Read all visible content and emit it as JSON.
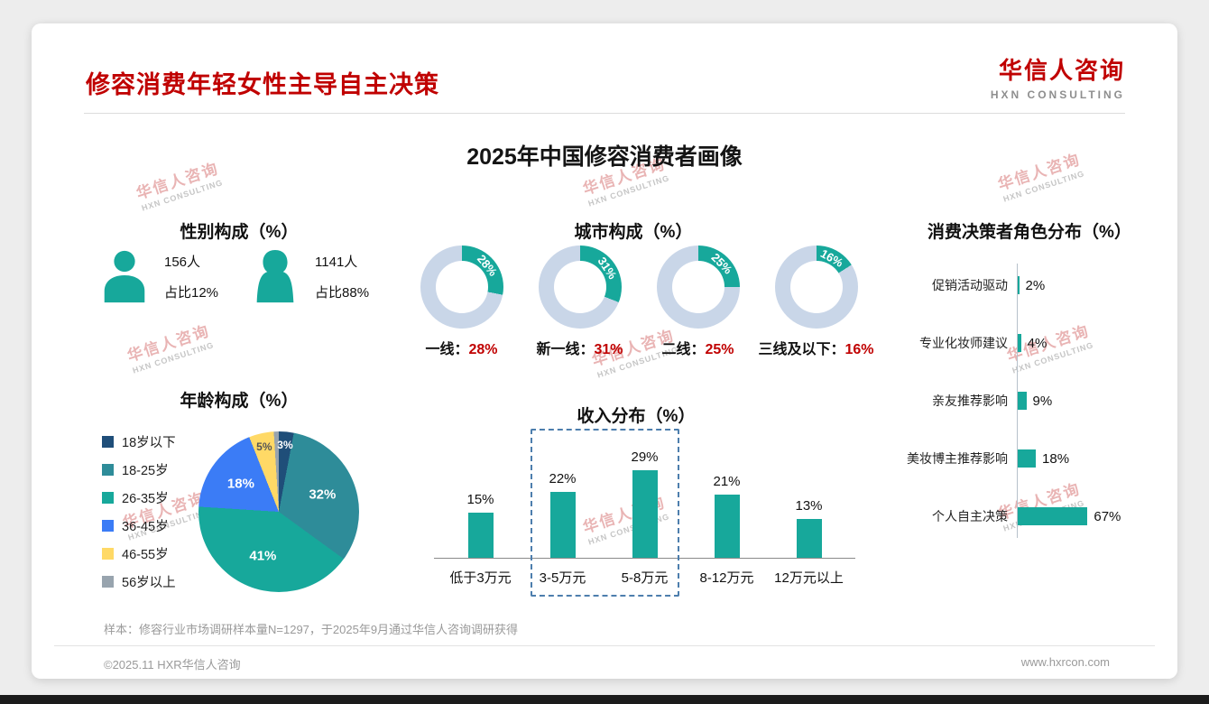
{
  "page": {
    "title": "修容消费年轻女性主导自主决策",
    "logo": {
      "zh": "华信人咨询",
      "en": "HXN CONSULTING"
    },
    "main_title": "2025年中国修容消费者画像",
    "watermark": {
      "zh": "华信人咨询",
      "en": "HXN CONSULTING"
    },
    "note": "样本：修容行业市场调研样本量N=1297，于2025年9月通过华信人咨询调研获得",
    "footer_left": "©2025.11 HXR华信人咨询",
    "footer_right": "www.hxrcon.com"
  },
  "colors": {
    "accent_red": "#C00000",
    "teal": "#17A89B",
    "donut_rest": "#C9D6E8",
    "highlight_border": "#4D7EAD"
  },
  "chart_data": [
    {
      "id": "gender",
      "type": "pictogram",
      "title": "性别构成（%）",
      "items": [
        {
          "label": "男",
          "count": "156人",
          "share": "占比12%"
        },
        {
          "label": "女",
          "count": "1141人",
          "share": "占比88%"
        }
      ]
    },
    {
      "id": "city",
      "type": "pie",
      "title": "城市构成（%）",
      "items": [
        {
          "label": "一线",
          "value": 28
        },
        {
          "label": "新一线",
          "value": 31
        },
        {
          "label": "二线",
          "value": 25
        },
        {
          "label": "三线及以下",
          "value": 16
        }
      ],
      "note": "four donut charts, teal segment = value, remainder light blue-gray"
    },
    {
      "id": "decision",
      "type": "bar",
      "orientation": "horizontal",
      "title": "消费决策者角色分布（%）",
      "categories": [
        "促销活动驱动",
        "专业化妆师建议",
        "亲友推荐影响",
        "美妆博主推荐影响",
        "个人自主决策"
      ],
      "values": [
        2,
        4,
        9,
        18,
        67
      ]
    },
    {
      "id": "age",
      "type": "pie",
      "title": "年龄构成（%）",
      "categories": [
        "18岁以下",
        "18-25岁",
        "26-35岁",
        "36-45岁",
        "46-55岁",
        "56岁以上"
      ],
      "values": [
        3,
        32,
        41,
        18,
        5,
        1
      ],
      "colors": [
        "#1F4E79",
        "#2E8C99",
        "#17A89B",
        "#3B7CF6",
        "#FFD966",
        "#98A4AE"
      ],
      "labels_shown": [
        "3%",
        "32%",
        "41%",
        "18%",
        "5%",
        ""
      ],
      "label_colors": [
        "#ffffff",
        "#ffffff",
        "#ffffff",
        "#ffffff",
        "#555555",
        "#ffffff"
      ]
    },
    {
      "id": "income",
      "type": "bar",
      "orientation": "vertical",
      "title": "收入分布（%）",
      "categories": [
        "低于3万元",
        "3-5万元",
        "5-8万元",
        "8-12万元",
        "12万元以上"
      ],
      "values": [
        15,
        22,
        29,
        21,
        13
      ],
      "highlight_range": [
        1,
        2
      ]
    }
  ]
}
